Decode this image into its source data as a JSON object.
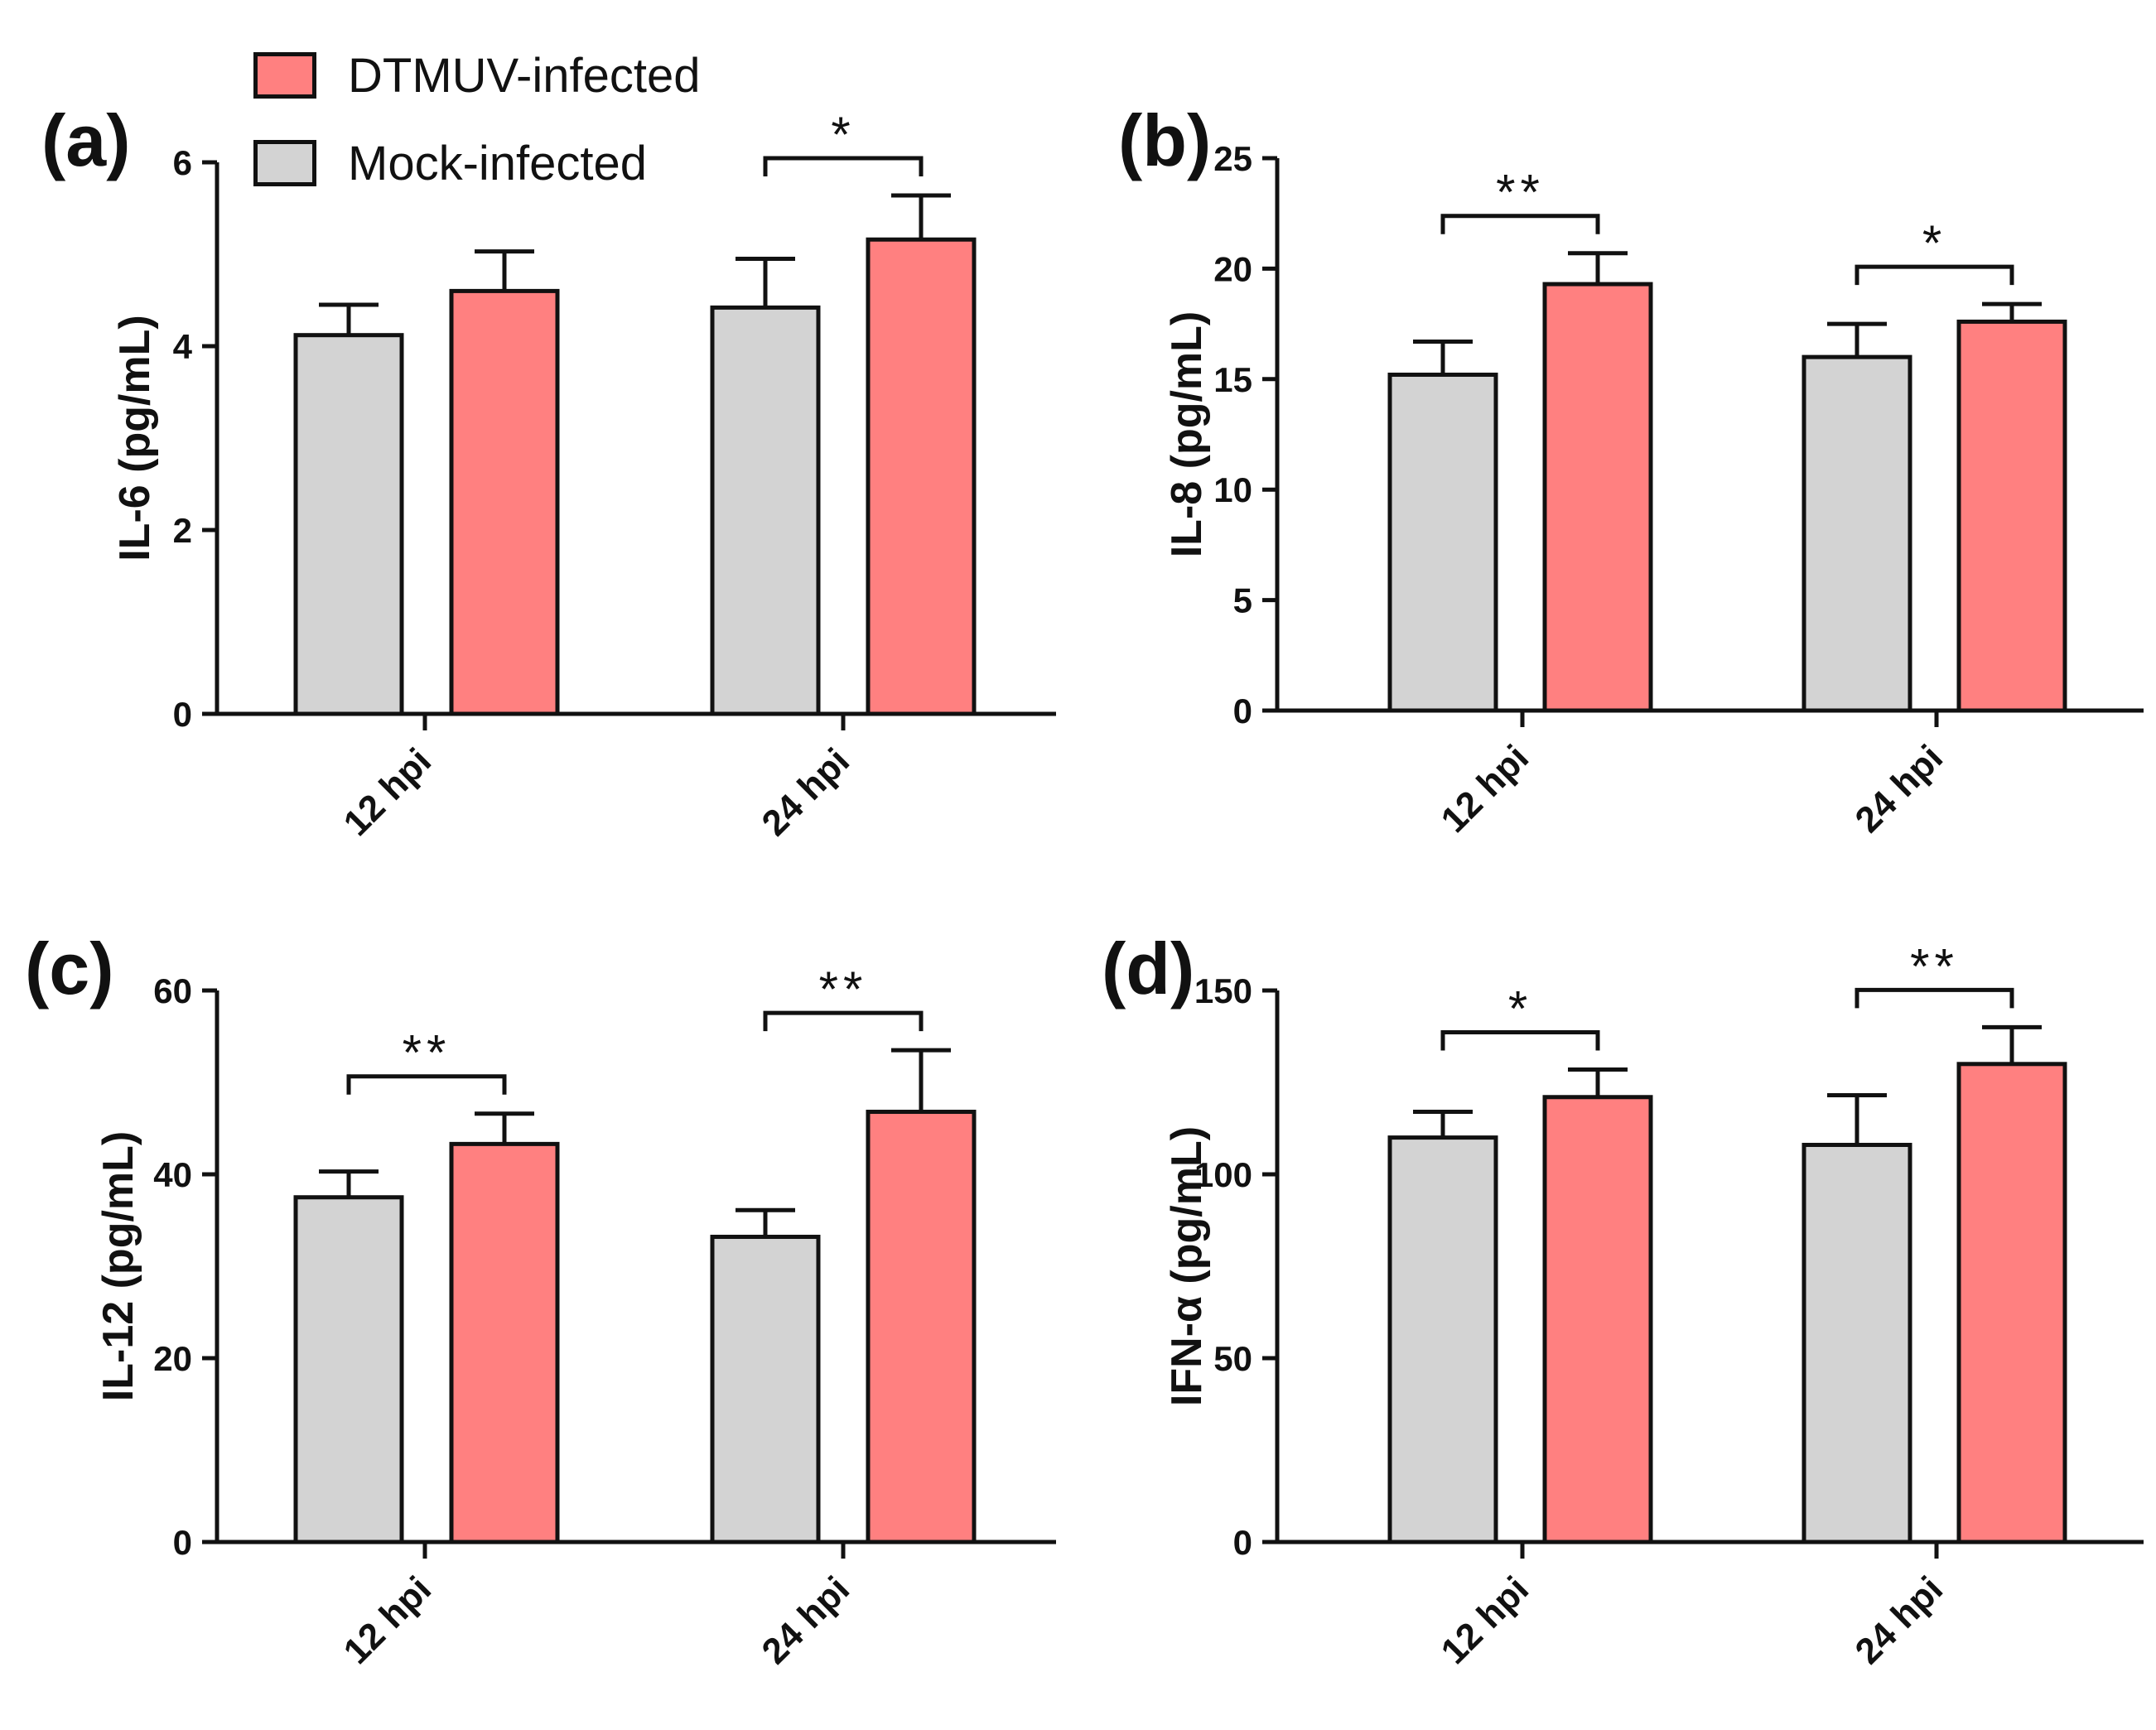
{
  "legend": {
    "items": [
      {
        "label": "DTMUV-infected",
        "color": "#FF8080"
      },
      {
        "label": "Mock-infected",
        "color": "#D3D3D3"
      }
    ]
  },
  "chart_data": [
    {
      "type": "bar",
      "panel": "(a)",
      "ylabel": "IL-6 (pg/mL)",
      "ylim": [
        0,
        6
      ],
      "yticks": [
        0,
        2,
        4,
        6
      ],
      "categories": [
        "12 hpi",
        "24 hpi"
      ],
      "series": [
        {
          "name": "Mock-infected",
          "values": [
            4.12,
            4.42
          ],
          "errors": [
            0.33,
            0.53
          ]
        },
        {
          "name": "DTMUV-infected",
          "values": [
            4.6,
            5.16
          ],
          "errors": [
            0.43,
            0.48
          ]
        }
      ],
      "significance": [
        {
          "category": "24 hpi",
          "label": "*"
        }
      ]
    },
    {
      "type": "bar",
      "panel": "(b)",
      "ylabel": "IL-8 (pg/mL)",
      "ylim": [
        0,
        25
      ],
      "yticks": [
        0,
        5,
        10,
        15,
        20,
        25
      ],
      "categories": [
        "12 hpi",
        "24 hpi"
      ],
      "series": [
        {
          "name": "Mock-infected",
          "values": [
            15.2,
            16.0
          ],
          "errors": [
            1.5,
            1.5
          ]
        },
        {
          "name": "DTMUV-infected",
          "values": [
            19.3,
            17.6
          ],
          "errors": [
            1.4,
            0.8
          ]
        }
      ],
      "significance": [
        {
          "category": "12 hpi",
          "label": "**"
        },
        {
          "category": "24 hpi",
          "label": "*"
        }
      ]
    },
    {
      "type": "bar",
      "panel": "(c)",
      "ylabel": "IL-12 (pg/mL)",
      "ylim": [
        0,
        60
      ],
      "yticks": [
        0,
        20,
        40,
        60
      ],
      "categories": [
        "12 hpi",
        "24 hpi"
      ],
      "series": [
        {
          "name": "Mock-infected",
          "values": [
            37.5,
            33.2
          ],
          "errors": [
            2.8,
            2.9
          ]
        },
        {
          "name": "DTMUV-infected",
          "values": [
            43.3,
            46.8
          ],
          "errors": [
            3.3,
            6.7
          ]
        }
      ],
      "significance": [
        {
          "category": "12 hpi",
          "label": "**"
        },
        {
          "category": "24 hpi",
          "label": "**"
        }
      ]
    },
    {
      "type": "bar",
      "panel": "(d)",
      "ylabel": "IFN-α (pg/mL)",
      "ylim": [
        0,
        150
      ],
      "yticks": [
        0,
        50,
        100,
        150
      ],
      "categories": [
        "12 hpi",
        "24 hpi"
      ],
      "series": [
        {
          "name": "Mock-infected",
          "values": [
            110,
            108
          ],
          "errors": [
            7,
            13.5
          ]
        },
        {
          "name": "DTMUV-infected",
          "values": [
            121,
            130
          ],
          "errors": [
            7.5,
            10
          ]
        }
      ],
      "significance": [
        {
          "category": "12 hpi",
          "label": "*"
        },
        {
          "category": "24 hpi",
          "label": "**"
        }
      ]
    }
  ]
}
